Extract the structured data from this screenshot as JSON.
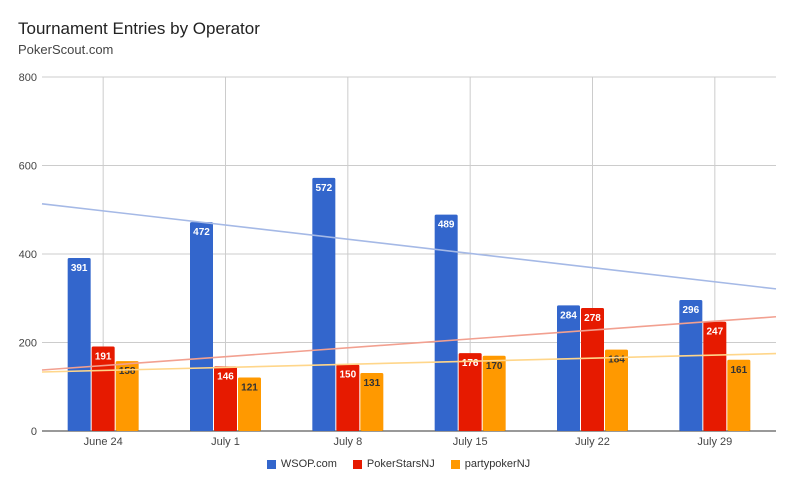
{
  "chart": {
    "title": "Tournament Entries by Operator",
    "subtitle": "PokerScout.com"
  },
  "chart_data": {
    "type": "bar",
    "categories": [
      "June 24",
      "July 1",
      "July 8",
      "July 15",
      "July 22",
      "July 29"
    ],
    "series": [
      {
        "name": "WSOP.com",
        "color": "#3366cc",
        "trend_color": "#a5b9e6",
        "label_color": "#ffffff",
        "values": [
          391,
          472,
          572,
          489,
          284,
          296
        ]
      },
      {
        "name": "PokerStarsNJ",
        "color": "#e61a00",
        "trend_color": "#f2a090",
        "label_color": "#ffffff",
        "values": [
          191,
          146,
          150,
          176,
          278,
          247
        ]
      },
      {
        "name": "partypokerNJ",
        "color": "#ff9900",
        "trend_color": "#ffd68a",
        "label_color": "#333333",
        "values": [
          158,
          121,
          131,
          170,
          184,
          161
        ]
      }
    ],
    "trendlines": true,
    "ylim": [
      0,
      800
    ],
    "yticks": [
      0,
      200,
      400,
      600,
      800
    ],
    "grid": true,
    "legend_position": "bottom"
  }
}
